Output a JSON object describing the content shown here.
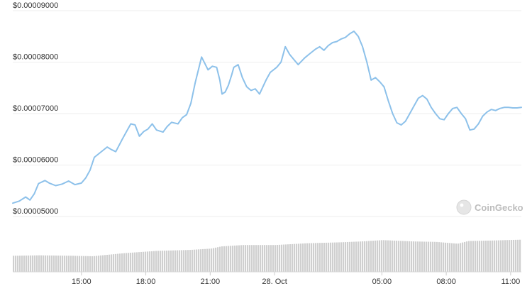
{
  "chart_data": {
    "type": "line",
    "title": "",
    "xlabel": "",
    "ylabel": "",
    "y_ticks": [
      "$0.00009000",
      "$0.00008000",
      "$0.00007000",
      "$0.00006000",
      "$0.00005000"
    ],
    "y_tick_values": [
      9e-05,
      8e-05,
      7e-05,
      6e-05,
      5e-05
    ],
    "ylim": [
      5e-05,
      9e-05
    ],
    "x_ticks": [
      "15:00",
      "18:00",
      "21:00",
      "28. Oct",
      "05:00",
      "08:00",
      "11:00"
    ],
    "x_tick_hours": [
      3,
      6,
      9,
      12,
      17,
      20,
      23
    ],
    "xlim_hours": [
      -0.2,
      23.5
    ],
    "grid": true,
    "legend": "none",
    "line_color": "#8dc1ea",
    "volume_color": "#cfcfcf",
    "watermark": "CoinGecko",
    "series": [
      {
        "x": [
          -0.2,
          0.1,
          0.4,
          0.6,
          0.8,
          1.0,
          1.3,
          1.5,
          1.8,
          2.1,
          2.4,
          2.7,
          3.0,
          3.2,
          3.4,
          3.6,
          3.9,
          4.2,
          4.4,
          4.6,
          4.9,
          5.1,
          5.3,
          5.5,
          5.7,
          5.9,
          6.1,
          6.3,
          6.5,
          6.8,
          7.0,
          7.2,
          7.5,
          7.7,
          7.9,
          8.1,
          8.3,
          8.6,
          8.9,
          9.1,
          9.3,
          9.45,
          9.55,
          9.7,
          9.85,
          10.0,
          10.1,
          10.3,
          10.5,
          10.7,
          10.9,
          11.1,
          11.3,
          11.6,
          11.8,
          12.1,
          12.3,
          12.5,
          12.7,
          12.9,
          13.1,
          13.4,
          13.6,
          13.9,
          14.1,
          14.3,
          14.5,
          14.7,
          14.9,
          15.1,
          15.3,
          15.5,
          15.7,
          15.9,
          16.1,
          16.3,
          16.5,
          16.7,
          16.9,
          17.1,
          17.3,
          17.5,
          17.7,
          17.9,
          18.1,
          18.3,
          18.5,
          18.7,
          18.9,
          19.1,
          19.3,
          19.5,
          19.7,
          19.9,
          20.1,
          20.3,
          20.5,
          20.7,
          20.9,
          21.1,
          21.3,
          21.5,
          21.7,
          21.9,
          22.1,
          22.3,
          22.5,
          22.7,
          22.9,
          23.1,
          23.3,
          23.5
        ],
        "y": [
          5.26e-05,
          5.3e-05,
          5.38e-05,
          5.32e-05,
          5.44e-05,
          5.64e-05,
          5.7e-05,
          5.65e-05,
          5.6e-05,
          5.63e-05,
          5.69e-05,
          5.62e-05,
          5.65e-05,
          5.75e-05,
          5.9e-05,
          6.15e-05,
          6.25e-05,
          6.35e-05,
          6.3e-05,
          6.26e-05,
          6.5e-05,
          6.65e-05,
          6.8e-05,
          6.78e-05,
          6.56e-05,
          6.65e-05,
          6.7e-05,
          6.8e-05,
          6.68e-05,
          6.64e-05,
          6.75e-05,
          6.83e-05,
          6.8e-05,
          6.92e-05,
          6.98e-05,
          7.2e-05,
          7.6e-05,
          8.1e-05,
          7.85e-05,
          7.92e-05,
          7.9e-05,
          7.65e-05,
          7.38e-05,
          7.42e-05,
          7.55e-05,
          7.75e-05,
          7.9e-05,
          7.95e-05,
          7.7e-05,
          7.52e-05,
          7.45e-05,
          7.48e-05,
          7.38e-05,
          7.65e-05,
          7.8e-05,
          7.9e-05,
          8e-05,
          8.3e-05,
          8.15e-05,
          8.05e-05,
          7.95e-05,
          8.08e-05,
          8.15e-05,
          8.25e-05,
          8.3e-05,
          8.23e-05,
          8.32e-05,
          8.38e-05,
          8.4e-05,
          8.45e-05,
          8.48e-05,
          8.55e-05,
          8.6e-05,
          8.5e-05,
          8.3e-05,
          8e-05,
          7.65e-05,
          7.7e-05,
          7.62e-05,
          7.52e-05,
          7.25e-05,
          7e-05,
          6.82e-05,
          6.78e-05,
          6.85e-05,
          7e-05,
          7.15e-05,
          7.3e-05,
          7.35e-05,
          7.28e-05,
          7.12e-05,
          7e-05,
          6.9e-05,
          6.88e-05,
          7e-05,
          7.1e-05,
          7.12e-05,
          7e-05,
          6.9e-05,
          6.68e-05,
          6.7e-05,
          6.8e-05,
          6.95e-05,
          7.03e-05,
          7.08e-05,
          7.06e-05,
          7.1e-05,
          7.12e-05,
          7.12e-05,
          7.11e-05,
          7.11e-05,
          7.12e-05
        ]
      }
    ],
    "volume": {
      "x": [
        -0.2,
        1.0,
        2.5,
        3.5,
        5.0,
        6.5,
        8.0,
        9.0,
        9.5,
        10.5,
        12.0,
        13.5,
        15.0,
        16.0,
        17.0,
        18.0,
        18.5,
        19.5,
        20.5,
        21.0,
        22.0,
        23.5
      ],
      "rel": [
        0.36,
        0.37,
        0.36,
        0.35,
        0.42,
        0.47,
        0.49,
        0.52,
        0.57,
        0.6,
        0.6,
        0.64,
        0.66,
        0.68,
        0.71,
        0.69,
        0.68,
        0.67,
        0.63,
        0.69,
        0.7,
        0.72
      ]
    }
  }
}
